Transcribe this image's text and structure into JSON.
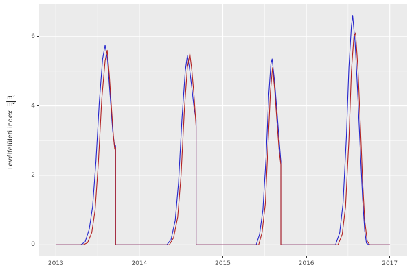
{
  "chart_data": {
    "type": "line",
    "title": "",
    "xlabel": "",
    "ylabel_text": "Levélfelületi index",
    "ylabel_frac_num": "m²",
    "ylabel_frac_den": "m²",
    "xlim": [
      2012.8,
      2017.2
    ],
    "ylim": [
      -0.33,
      6.93
    ],
    "x_ticks": [
      2013,
      2014,
      2015,
      2016,
      2017
    ],
    "x_tick_labels": [
      "2013",
      "2014",
      "2015",
      "2016",
      "2017"
    ],
    "y_ticks": [
      0,
      2,
      4,
      6
    ],
    "y_tick_labels": [
      "0",
      "2",
      "4",
      "6"
    ],
    "x_minor_ticks": [
      2013.5,
      2014.5,
      2015.5,
      2016.5
    ],
    "y_minor_ticks": [
      1,
      3,
      5
    ],
    "grid": true,
    "legend": "none",
    "panel_bg": "#EBEBEB",
    "grid_color": "#FFFFFF",
    "tick_color": "#333333",
    "series": [
      {
        "name": "blue-line",
        "color": "#2424CC",
        "points": [
          [
            2013.0,
            0
          ],
          [
            2013.3,
            0
          ],
          [
            2013.35,
            0.08
          ],
          [
            2013.4,
            0.45
          ],
          [
            2013.44,
            1.1
          ],
          [
            2013.48,
            2.4
          ],
          [
            2013.52,
            4.1
          ],
          [
            2013.56,
            5.35
          ],
          [
            2013.59,
            5.75
          ],
          [
            2013.62,
            5.3
          ],
          [
            2013.65,
            4.3
          ],
          [
            2013.68,
            3.3
          ],
          [
            2013.7,
            2.9
          ],
          [
            2013.715,
            2.85
          ],
          [
            2013.715,
            0
          ],
          [
            2014.0,
            0
          ],
          [
            2014.33,
            0
          ],
          [
            2014.38,
            0.15
          ],
          [
            2014.43,
            0.7
          ],
          [
            2014.47,
            1.8
          ],
          [
            2014.51,
            3.6
          ],
          [
            2014.55,
            5.0
          ],
          [
            2014.575,
            5.45
          ],
          [
            2014.6,
            5.1
          ],
          [
            2014.63,
            4.5
          ],
          [
            2014.655,
            3.95
          ],
          [
            2014.68,
            3.6
          ],
          [
            2014.68,
            0
          ],
          [
            2015.0,
            0
          ],
          [
            2015.4,
            0
          ],
          [
            2015.44,
            0.3
          ],
          [
            2015.48,
            1.0
          ],
          [
            2015.52,
            2.6
          ],
          [
            2015.55,
            4.3
          ],
          [
            2015.575,
            5.2
          ],
          [
            2015.59,
            5.35
          ],
          [
            2015.62,
            4.7
          ],
          [
            2015.65,
            3.8
          ],
          [
            2015.675,
            3.0
          ],
          [
            2015.695,
            2.4
          ],
          [
            2015.695,
            0
          ],
          [
            2016.0,
            0
          ],
          [
            2016.35,
            0
          ],
          [
            2016.4,
            0.35
          ],
          [
            2016.44,
            1.2
          ],
          [
            2016.48,
            3.1
          ],
          [
            2016.51,
            5.1
          ],
          [
            2016.54,
            6.3
          ],
          [
            2016.555,
            6.6
          ],
          [
            2016.585,
            5.8
          ],
          [
            2016.615,
            4.4
          ],
          [
            2016.645,
            2.8
          ],
          [
            2016.675,
            1.3
          ],
          [
            2016.7,
            0.4
          ],
          [
            2016.72,
            0.05
          ],
          [
            2016.75,
            0
          ],
          [
            2017.0,
            0
          ]
        ]
      },
      {
        "name": "red-line",
        "color": "#B22222",
        "points": [
          [
            2013.0,
            0
          ],
          [
            2013.33,
            0
          ],
          [
            2013.38,
            0.06
          ],
          [
            2013.43,
            0.35
          ],
          [
            2013.47,
            1.0
          ],
          [
            2013.51,
            2.4
          ],
          [
            2013.55,
            4.2
          ],
          [
            2013.59,
            5.3
          ],
          [
            2013.615,
            5.6
          ],
          [
            2013.64,
            4.9
          ],
          [
            2013.67,
            3.8
          ],
          [
            2013.69,
            3.1
          ],
          [
            2013.705,
            2.75
          ],
          [
            2013.715,
            2.8
          ],
          [
            2013.715,
            0
          ],
          [
            2014.0,
            0
          ],
          [
            2014.36,
            0
          ],
          [
            2014.41,
            0.2
          ],
          [
            2014.46,
            0.8
          ],
          [
            2014.5,
            2.0
          ],
          [
            2014.54,
            3.9
          ],
          [
            2014.575,
            5.1
          ],
          [
            2014.605,
            5.5
          ],
          [
            2014.63,
            5.0
          ],
          [
            2014.655,
            4.3
          ],
          [
            2014.68,
            3.4
          ],
          [
            2014.68,
            0
          ],
          [
            2015.0,
            0
          ],
          [
            2015.43,
            0
          ],
          [
            2015.47,
            0.35
          ],
          [
            2015.51,
            1.2
          ],
          [
            2015.54,
            2.8
          ],
          [
            2015.57,
            4.4
          ],
          [
            2015.595,
            5.1
          ],
          [
            2015.62,
            4.5
          ],
          [
            2015.65,
            3.5
          ],
          [
            2015.675,
            2.7
          ],
          [
            2015.695,
            2.3
          ],
          [
            2015.695,
            0
          ],
          [
            2016.0,
            0
          ],
          [
            2016.38,
            0
          ],
          [
            2016.43,
            0.3
          ],
          [
            2016.47,
            1.1
          ],
          [
            2016.51,
            3.0
          ],
          [
            2016.54,
            5.0
          ],
          [
            2016.57,
            6.0
          ],
          [
            2016.59,
            6.1
          ],
          [
            2016.62,
            5.0
          ],
          [
            2016.65,
            3.3
          ],
          [
            2016.675,
            1.8
          ],
          [
            2016.7,
            0.7
          ],
          [
            2016.73,
            0.1
          ],
          [
            2016.76,
            0
          ],
          [
            2017.0,
            0
          ]
        ]
      }
    ]
  }
}
